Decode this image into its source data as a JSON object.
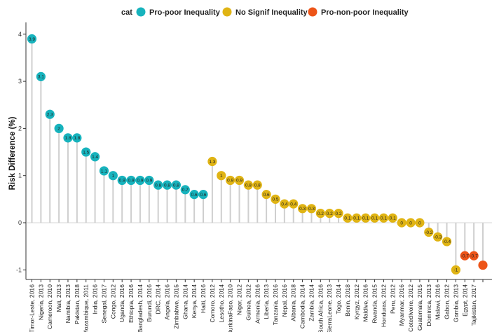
{
  "chart_data": {
    "type": "lollipop",
    "ylabel": "Risk Difference (%)",
    "xlabel": "",
    "ylim": [
      -1.2,
      4.15
    ],
    "yticks": [
      -1,
      0,
      1,
      2,
      3,
      4
    ],
    "legend": {
      "title": "cat",
      "position": "top",
      "entries": [
        {
          "key": "pro",
          "label": "Pro-poor Inequality",
          "color": "#17b3bd"
        },
        {
          "key": "nosig",
          "label": "No Signif Inequality",
          "color": "#e0b414"
        },
        {
          "key": "non",
          "label": "Pro-non-poor Inequality",
          "color": "#ed5418"
        }
      ]
    },
    "points": [
      {
        "category": "Timor-Leste, 2016",
        "value": 3.9,
        "label": "3.9",
        "group": "pro"
      },
      {
        "category": "Nigeria, 2013",
        "value": 3.1,
        "label": "3.1",
        "group": "pro"
      },
      {
        "category": "Cameroon, 2010",
        "value": 2.3,
        "label": "2.3",
        "group": "pro"
      },
      {
        "category": "Mali, 2013",
        "value": 2.0,
        "label": "2",
        "group": "pro"
      },
      {
        "category": "Namibia, 2013",
        "value": 1.8,
        "label": "1.8",
        "group": "pro"
      },
      {
        "category": "Pakistan, 2018",
        "value": 1.8,
        "label": "1.8",
        "group": "pro"
      },
      {
        "category": "Mozambique, 2011",
        "value": 1.5,
        "label": "1.5",
        "group": "pro"
      },
      {
        "category": "India, 2016",
        "value": 1.4,
        "label": "1.4",
        "group": "pro"
      },
      {
        "category": "Senegal, 2017",
        "value": 1.1,
        "label": "1.1",
        "group": "pro"
      },
      {
        "category": "Congo, 2012",
        "value": 1.0,
        "label": "1",
        "group": "pro"
      },
      {
        "category": "Uganda, 2016",
        "value": 0.9,
        "label": "0.9",
        "group": "pro"
      },
      {
        "category": "Ethiopia, 2016",
        "value": 0.9,
        "label": "0.9",
        "group": "pro"
      },
      {
        "category": "Bangladesh, 2014",
        "value": 0.9,
        "label": "0.9",
        "group": "pro"
      },
      {
        "category": "Burundi, 2016",
        "value": 0.9,
        "label": "0.9",
        "group": "pro"
      },
      {
        "category": "DRC, 2014",
        "value": 0.8,
        "label": "0.8",
        "group": "pro"
      },
      {
        "category": "Angola, 2016",
        "value": 0.8,
        "label": "0.8",
        "group": "pro"
      },
      {
        "category": "Zimbabwe, 2015",
        "value": 0.8,
        "label": "0.8",
        "group": "pro"
      },
      {
        "category": "Ghana, 2014",
        "value": 0.7,
        "label": "0.7",
        "group": "pro"
      },
      {
        "category": "Kenya, 2014",
        "value": 0.6,
        "label": "0.6",
        "group": "pro"
      },
      {
        "category": "Haiti, 2016",
        "value": 0.6,
        "label": "0.6",
        "group": "pro"
      },
      {
        "category": "Comoro, 2012",
        "value": 1.3,
        "label": "1.3",
        "group": "nosig"
      },
      {
        "category": "Lesotho, 2014",
        "value": 1.0,
        "label": "1",
        "group": "nosig"
      },
      {
        "category": "BurkinaFaso, 2010",
        "value": 0.9,
        "label": "0.9",
        "group": "nosig"
      },
      {
        "category": "Niger, 2012",
        "value": 0.9,
        "label": "0.9",
        "group": "nosig"
      },
      {
        "category": "Guinea, 2012",
        "value": 0.8,
        "label": "0.8",
        "group": "nosig"
      },
      {
        "category": "Armenia, 2016",
        "value": 0.8,
        "label": "0.8",
        "group": "nosig"
      },
      {
        "category": "Liberia, 2013",
        "value": 0.6,
        "label": "0.6",
        "group": "nosig"
      },
      {
        "category": "Tanzania, 2016",
        "value": 0.5,
        "label": "0.5",
        "group": "nosig"
      },
      {
        "category": "Nepal, 2016",
        "value": 0.4,
        "label": "0.4",
        "group": "nosig"
      },
      {
        "category": "Albania, 2018",
        "value": 0.4,
        "label": "0.4",
        "group": "nosig"
      },
      {
        "category": "Cambodia, 2014",
        "value": 0.3,
        "label": "0.3",
        "group": "nosig"
      },
      {
        "category": "Zambia, 2014",
        "value": 0.3,
        "label": "0.3",
        "group": "nosig"
      },
      {
        "category": "South Africa, 2016",
        "value": 0.2,
        "label": "0.2",
        "group": "nosig"
      },
      {
        "category": "SierraLeone, 2013",
        "value": 0.2,
        "label": "0.2",
        "group": "nosig"
      },
      {
        "category": "Togo, 2014",
        "value": 0.2,
        "label": "0.2",
        "group": "nosig"
      },
      {
        "category": "Benin, 2018",
        "value": 0.1,
        "label": "0.1",
        "group": "nosig"
      },
      {
        "category": "Kyrgyz, 2012",
        "value": 0.1,
        "label": "0.1",
        "group": "nosig"
      },
      {
        "category": "Maldive, 2016",
        "value": 0.1,
        "label": "0.1",
        "group": "nosig"
      },
      {
        "category": "Rwanda, 2015",
        "value": 0.1,
        "label": "0.1",
        "group": "nosig"
      },
      {
        "category": "Honduras, 2012",
        "value": 0.1,
        "label": "0.1",
        "group": "nosig"
      },
      {
        "category": "Peru, 2012",
        "value": 0.1,
        "label": "0.1",
        "group": "nosig"
      },
      {
        "category": "Myanmar, 2016",
        "value": 0.0,
        "label": "0",
        "group": "nosig"
      },
      {
        "category": "CotedIvoire, 2012",
        "value": 0.0,
        "label": "0",
        "group": "nosig"
      },
      {
        "category": "Guatemala, 2015",
        "value": 0.0,
        "label": "0",
        "group": "nosig"
      },
      {
        "category": "Dominica, 2013",
        "value": -0.2,
        "label": "-0.2",
        "group": "nosig"
      },
      {
        "category": "Malawi, 2016",
        "value": -0.3,
        "label": "-0.3",
        "group": "nosig"
      },
      {
        "category": "Gabon, 2012",
        "value": -0.4,
        "label": "-0.4",
        "group": "nosig"
      },
      {
        "category": "Gambia, 2013",
        "value": -1.0,
        "label": "-1",
        "group": "nosig"
      },
      {
        "category": "Egypt, 2014",
        "value": -0.7,
        "label": "-0.7",
        "group": "non"
      },
      {
        "category": "Tajikistan, 2017",
        "value": -0.7,
        "label": "-0.7",
        "group": "non"
      },
      {
        "category": "",
        "value": -0.9,
        "label": "",
        "group": "non"
      }
    ]
  }
}
